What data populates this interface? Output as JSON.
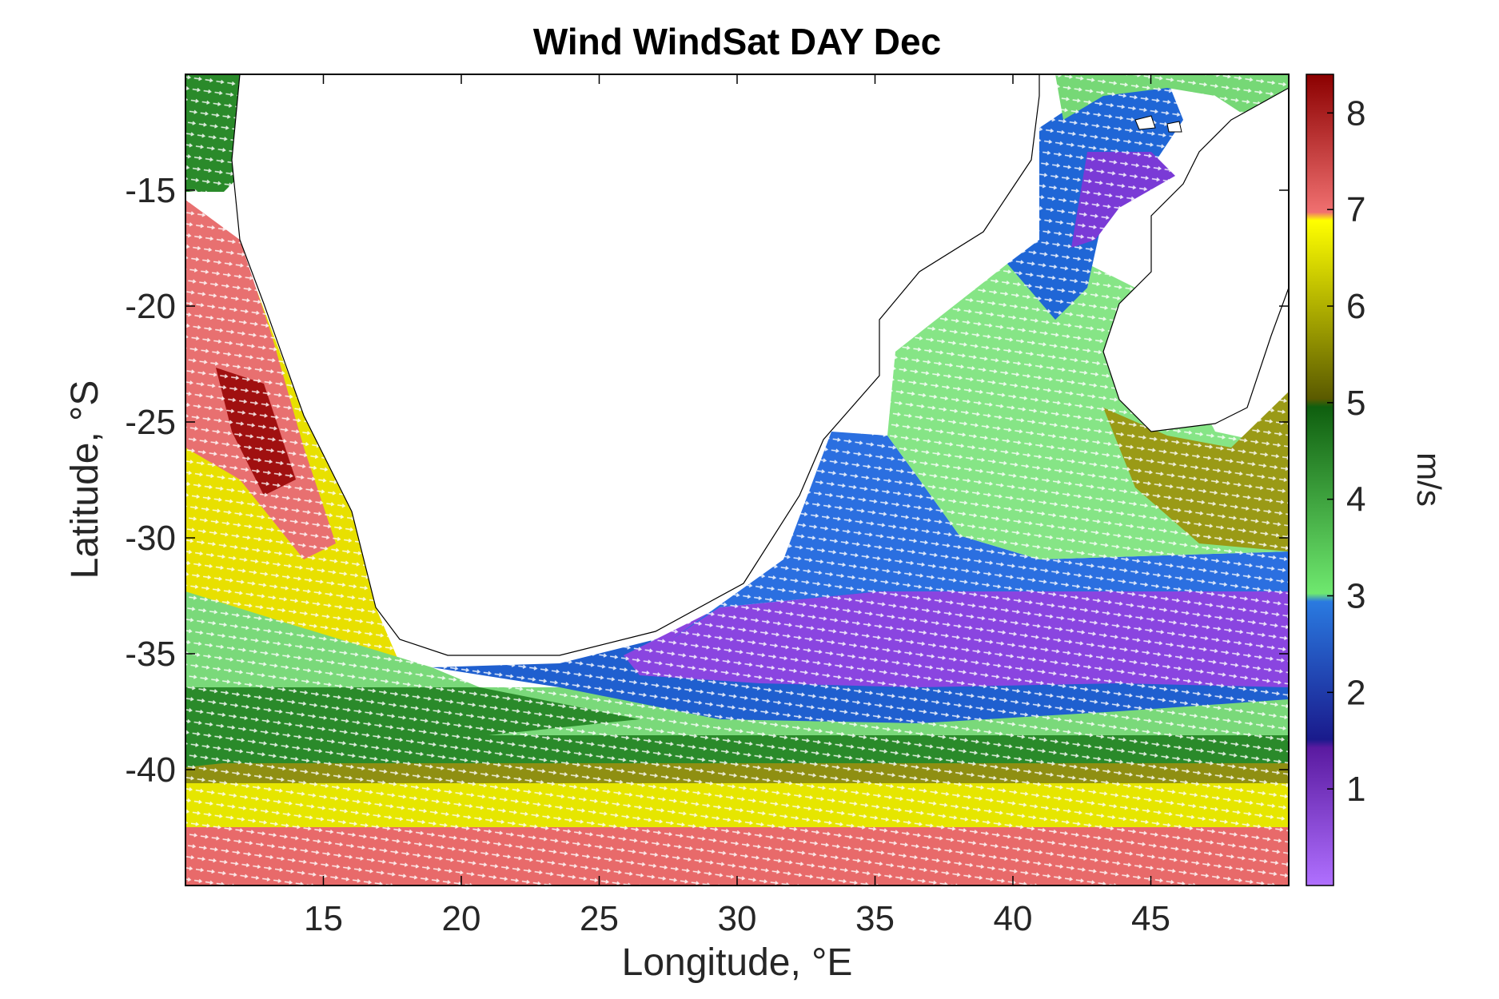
{
  "figure": {
    "title": "Wind WindSat DAY Dec",
    "xlabel": "Longitude, °E",
    "ylabel": "Latitude, °S",
    "colorbar_label": "m/s"
  },
  "chart_data": {
    "type": "heatmap",
    "title": "Wind WindSat DAY Dec",
    "xlabel": "Longitude, °E",
    "ylabel": "Latitude, °S",
    "xlim": [
      10,
      50
    ],
    "ylim": [
      -45,
      -10
    ],
    "xticks": [
      15,
      20,
      25,
      30,
      35,
      40,
      45
    ],
    "xtick_labels": [
      "15",
      "20",
      "25",
      "30",
      "35",
      "40",
      "45"
    ],
    "yticks": [
      -15,
      -20,
      -25,
      -30,
      -35,
      -40
    ],
    "ytick_labels": [
      "-15",
      "-20",
      "-25",
      "-30",
      "-35",
      "-40"
    ],
    "colorbar": {
      "label": "m/s",
      "range": [
        0,
        8.4
      ],
      "ticks": [
        1,
        2,
        3,
        4,
        5,
        6,
        7,
        8
      ],
      "tick_labels": [
        "1",
        "2",
        "3",
        "4",
        "5",
        "6",
        "7",
        "8"
      ],
      "placement": "right"
    },
    "overlay": "white wind-direction arrows",
    "colors": {
      "purple": "#9b59f0",
      "blue": "#1a73e8",
      "light_green": "#7fe07f",
      "dark_green": "#1f7a1f",
      "olive": "#8a8a10",
      "yellow": "#f0f000",
      "red": "#e26060",
      "dark_red": "#8b0000"
    }
  }
}
